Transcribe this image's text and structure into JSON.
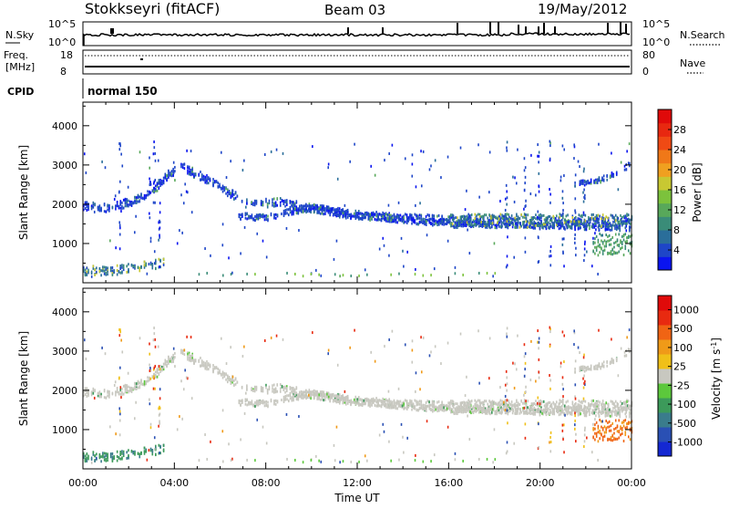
{
  "header": {
    "station": "Stokkseyri (fitACF)",
    "beam": "Beam 03",
    "date": "19/May/2012"
  },
  "summary_panels": {
    "nsky_label": "N.Sky",
    "nsky_ticks": [
      "10^5",
      "10^0"
    ],
    "nsearch_label": "N.Search",
    "nsearch_ticks": [
      "10^5",
      "10^0"
    ],
    "freq_label": "Freq.",
    "freq_unit": "[MHz]",
    "freq_ticks": [
      "18",
      "8"
    ],
    "nave_label": "Nave",
    "nave_ticks": [
      "80",
      "0"
    ],
    "cpid_label": "CPID",
    "cpid_value": "normal 150"
  },
  "chart_data": [
    {
      "type": "heatmap",
      "title": "",
      "xlabel": "Time UT",
      "ylabel": "Slant Range [km]",
      "x_ticks": [
        "00:00",
        "04:00",
        "08:00",
        "12:00",
        "16:00",
        "20:00",
        "00:00"
      ],
      "x_range_hours": [
        0,
        24
      ],
      "y_ticks": [
        1000,
        2000,
        3000,
        4000
      ],
      "ylim": [
        0,
        4600
      ],
      "colorbar": {
        "label": "Power [dB]",
        "ticks": [
          "4",
          "8",
          "12",
          "16",
          "20",
          "24",
          "28"
        ],
        "colors": [
          "#0a14f0",
          "#1e46c8",
          "#2a6e9a",
          "#3a8c78",
          "#58a85a",
          "#7cc23c",
          "#c8c832",
          "#f0a020",
          "#f07818",
          "#f04a14",
          "#e82810",
          "#e00a0a"
        ]
      },
      "bands": [
        {
          "name": "main",
          "points": [
            [
              0.0,
              1950
            ],
            [
              1.0,
              1900
            ],
            [
              2.0,
              2050
            ],
            [
              3.0,
              2300
            ],
            [
              3.8,
              2800
            ],
            [
              4.3,
              2950
            ],
            [
              5.5,
              2600
            ],
            [
              6.5,
              2250
            ],
            [
              7.5,
              2000
            ],
            [
              8.5,
              2050
            ],
            [
              9.5,
              1950
            ],
            [
              10.5,
              1850
            ],
            [
              11.5,
              1750
            ],
            [
              12.5,
              1700
            ],
            [
              14,
              1650
            ],
            [
              16,
              1600
            ],
            [
              18,
              1600
            ],
            [
              20,
              1550
            ],
            [
              22,
              1550
            ],
            [
              24,
              1550
            ]
          ],
          "spread": 110,
          "level": "low"
        },
        {
          "name": "lower",
          "points": [
            [
              6.8,
              1700
            ],
            [
              8,
              1650
            ],
            [
              9,
              1800
            ],
            [
              10,
              1900
            ],
            [
              11,
              1800
            ],
            [
              12,
              1700
            ],
            [
              13,
              1650
            ],
            [
              15,
              1550
            ],
            [
              17,
              1500
            ],
            [
              19,
              1450
            ],
            [
              21,
              1450
            ],
            [
              23,
              1400
            ],
            [
              24,
              1400
            ]
          ],
          "spread": 80,
          "level": "low"
        },
        {
          "name": "upper-late",
          "points": [
            [
              21.5,
              2500
            ],
            [
              22.5,
              2600
            ],
            [
              23.2,
              2750
            ],
            [
              24,
              3050
            ]
          ],
          "spread": 70,
          "level": "low"
        },
        {
          "name": "near",
          "points": [
            [
              0,
              300
            ],
            [
              1.5,
              320
            ],
            [
              3,
              450
            ],
            [
              3.5,
              520
            ]
          ],
          "spread": 120,
          "level": "mid"
        }
      ]
    },
    {
      "type": "heatmap",
      "title": "",
      "xlabel": "Time UT",
      "ylabel": "Slant Range [km]",
      "x_ticks": [
        "00:00",
        "04:00",
        "08:00",
        "12:00",
        "16:00",
        "20:00",
        "00:00"
      ],
      "x_range_hours": [
        0,
        24
      ],
      "y_ticks": [
        1000,
        2000,
        3000,
        4000
      ],
      "ylim": [
        0,
        4600
      ],
      "colorbar": {
        "label": "Velocity [m s^-1]",
        "ticks": [
          "1000",
          "500",
          "100",
          "25",
          "-25",
          "-100",
          "-500",
          "-1000"
        ],
        "colors": [
          "#1428d2",
          "#2a50b4",
          "#3a7c8c",
          "#3c9a5a",
          "#5cc83c",
          "#c8c8c0",
          "#f0c018",
          "#f09a18",
          "#f06414",
          "#e82a10",
          "#e00a0a"
        ]
      }
    }
  ]
}
